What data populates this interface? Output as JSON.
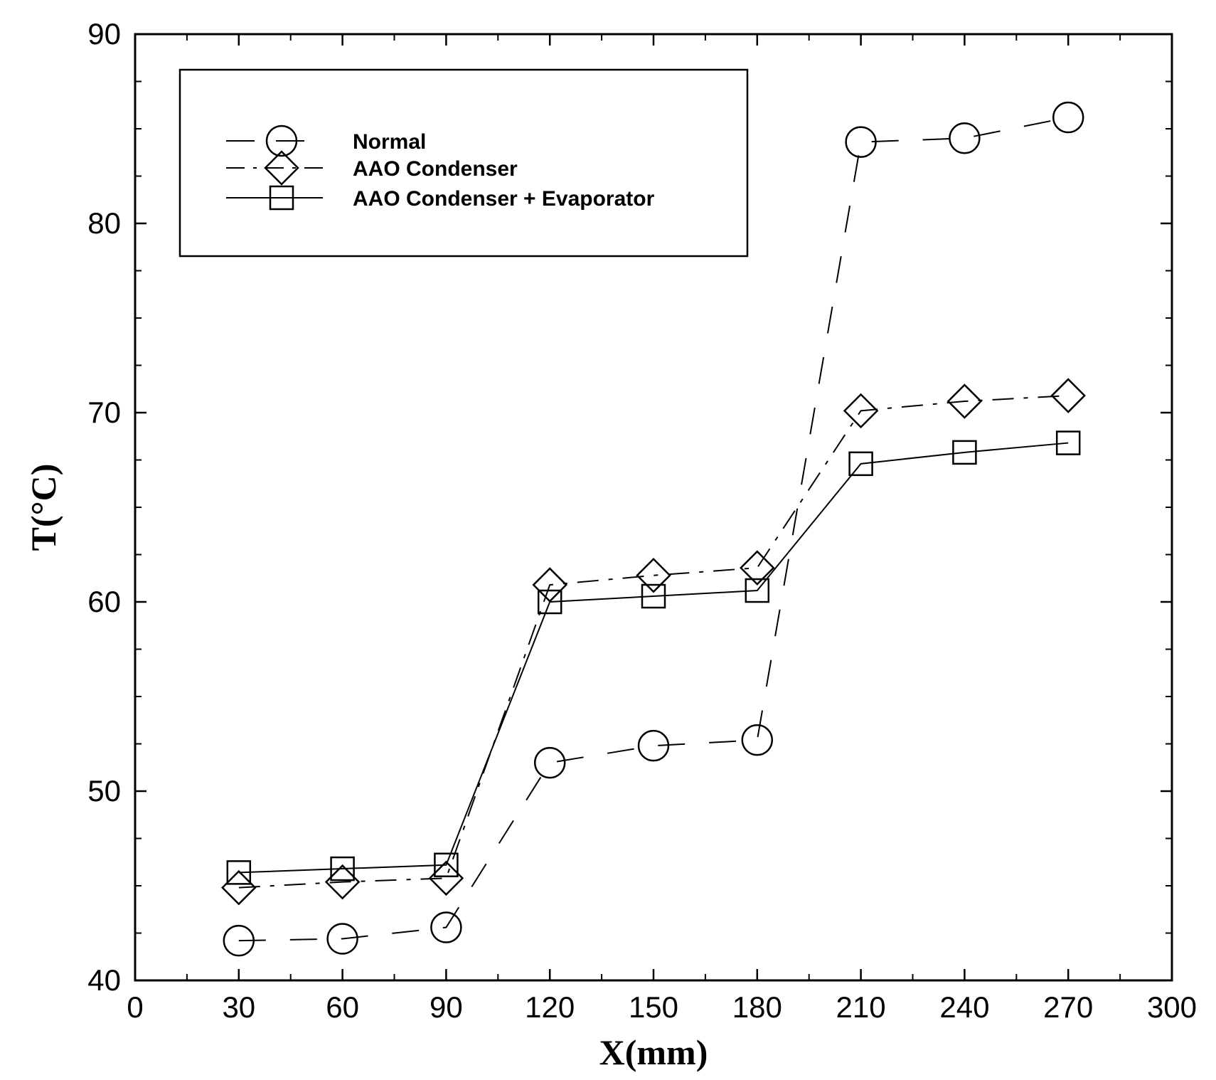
{
  "chart_data": {
    "type": "line",
    "title": "",
    "xlabel": "X(mm)",
    "ylabel": "T(°C)",
    "xlim": [
      0,
      300
    ],
    "ylim": [
      40,
      90
    ],
    "x_ticks": [
      "0",
      "30",
      "60",
      "90",
      "120",
      "150",
      "180",
      "210",
      "240",
      "270",
      "300"
    ],
    "y_ticks": [
      "40",
      "50",
      "60",
      "70",
      "80",
      "90"
    ],
    "grid": false,
    "legend_position": "top-left",
    "x": [
      30,
      60,
      90,
      120,
      150,
      180,
      210,
      240,
      270
    ],
    "series": [
      {
        "name": "Normal",
        "marker": "circle",
        "line_style": "long-dash",
        "values": [
          42.1,
          42.2,
          42.8,
          51.5,
          52.4,
          52.7,
          84.3,
          84.5,
          85.6
        ]
      },
      {
        "name": "AAO Condenser",
        "marker": "diamond",
        "line_style": "dash-dot",
        "values": [
          44.9,
          45.2,
          45.4,
          60.9,
          61.4,
          61.8,
          70.1,
          70.6,
          70.9
        ]
      },
      {
        "name": "AAO Condenser + Evaporator",
        "marker": "square",
        "line_style": "solid",
        "values": [
          45.7,
          45.9,
          46.1,
          60.0,
          60.3,
          60.6,
          67.3,
          67.9,
          68.4
        ]
      }
    ]
  }
}
